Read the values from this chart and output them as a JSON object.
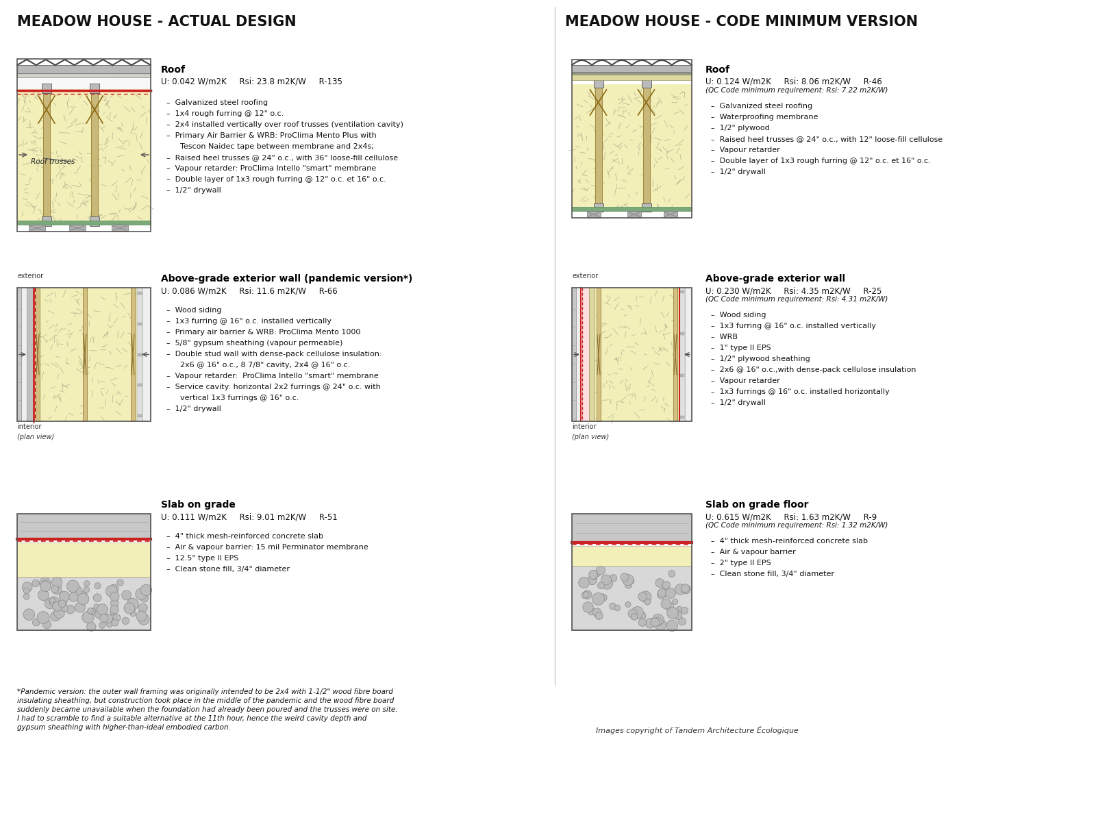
{
  "left_title": "MEADOW HOUSE - ACTUAL DESIGN",
  "right_title": "MEADOW HOUSE - CODE MINIMUM VERSION",
  "bg_color": "#ffffff",
  "text_color": "#000000",
  "sections": {
    "left": {
      "roof": {
        "heading": "Roof",
        "specs": "U: 0.042 W/m2K     Rsi: 23.8 m2K/W     R-135",
        "specs2": null,
        "items": [
          "Galvanized steel roofing",
          "1x4 rough furring @ 12\" o.c.",
          "2x4 installed vertically over roof trusses (ventilation cavity)",
          "Primary Air Barrier & WRB: ProClima Mento Plus with",
          "~Tescon Naidec tape between membrane and 2x4s;",
          "Raised heel trusses @ 24\" o.c., with 36\" loose-fill cellulose",
          "Vapour retarder: ProClima Intello \"smart\" membrane",
          "Double layer of 1x3 rough furring @ 12\" o.c. et 16\" o.c.",
          "1/2\" drywall"
        ],
        "label": "Roof trusses"
      },
      "wall": {
        "heading": "Above-grade exterior wall (pandemic version*)",
        "specs": "U: 0.086 W/m2K     Rsi: 11.6 m2K/W     R-66",
        "specs2": null,
        "items": [
          "Wood siding",
          "1x3 furring @ 16\" o.c. installed vertically",
          "Primary air barrier & WRB: ProClima Mento 1000",
          "5/8\" gypsum sheathing (vapour permeable)",
          "Double stud wall with dense-pack cellulose insulation:",
          "~2x6 @ 16\" o.c., 8 7/8\" cavity, 2x4 @ 16\" o.c.",
          "Vapour retarder:  ProClima Intello \"smart\" membrane",
          "Service cavity: horizontal 2x2 furrings @ 24\" o.c. with",
          "~vertical 1x3 furrings @ 16\" o.c.",
          "1/2\" drywall"
        ],
        "label_ext": "exterior",
        "label_int": "interior",
        "label_plan": "(plan view)"
      },
      "slab": {
        "heading": "Slab on grade",
        "specs": "U: 0.111 W/m2K     Rsi: 9.01 m2K/W     R-51",
        "specs2": null,
        "items": [
          "4\" thick mesh-reinforced concrete slab",
          "Air & vapour barrier: 15 mil Perminator membrane",
          "12.5\" type II EPS",
          "Clean stone fill, 3/4\" diameter"
        ]
      }
    },
    "right": {
      "roof": {
        "heading": "Roof",
        "specs": "U: 0.124 W/m2K     Rsi: 8.06 m2K/W     R-46",
        "specs2": "(QC Code minimum requirement: Rsi: 7.22 m2K/W)",
        "items": [
          "Galvanized steel roofing",
          "Waterproofing membrane",
          "1/2\" plywood",
          "Raised heel trusses @ 24\" o.c., with 12\" loose-fill cellulose",
          "Vapour retarder",
          "Double layer of 1x3 rough furring @ 12\" o.c. et 16\" o.c.",
          "1/2\" drywall"
        ]
      },
      "wall": {
        "heading": "Above-grade exterior wall",
        "specs": "U: 0.230 W/m2K     Rsi: 4.35 m2K/W     R-25",
        "specs2": "(QC Code minimum requirement: Rsi: 4.31 m2K/W)",
        "items": [
          "Wood siding",
          "1x3 furring @ 16\" o.c. installed vertically",
          "WRB",
          "1\" type II EPS",
          "1/2\" plywood sheathing",
          "2x6 @ 16\" o.c.,with dense-pack cellulose insulation",
          "Vapour retarder",
          "1x3 furrings @ 16\" o.c. installed horizontally",
          "1/2\" drywall"
        ],
        "label_ext": "exterior",
        "label_int": "interior",
        "label_plan": "(plan view)"
      },
      "slab": {
        "heading": "Slab on grade floor",
        "specs": "U: 0.615 W/m2K     Rsi: 1.63 m2K/W     R-9",
        "specs2": "(QC Code minimum requirement: Rsi: 1.32 m2K/W)",
        "items": [
          "4\" thick mesh-reinforced concrete slab",
          "Air & vapour barrier",
          "2\" type II EPS",
          "Clean stone fill, 3/4\" diameter"
        ]
      }
    }
  },
  "footnote": "*Pandemic version: the outer wall framing was originally intended to be 2x4 with 1-1/2\" wood fibre board\ninsulating sheathing, but construction took place in the middle of the pandemic and the wood fibre board\nsuddenly became unavailable when the foundation had already been poured and the trusses were on site.\nI had to scramble to find a suitable alternative at the 11th hour, hence the weird cavity depth and\ngypsum sheathing with higher-than-ideal embodied carbon.",
  "copyright": "Images copyright of Tandem Architecture Écologique"
}
